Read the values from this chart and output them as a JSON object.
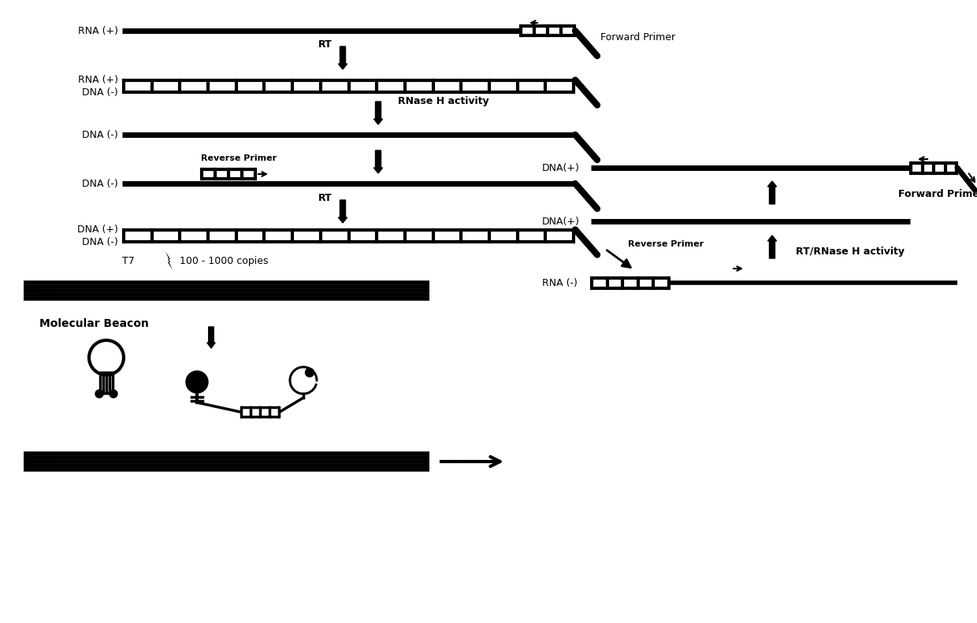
{
  "bg_color": "#ffffff",
  "fig_width": 12.4,
  "fig_height": 7.91,
  "labels": {
    "RNA_plus": "RNA (+)",
    "rna_plus": "RNA (+)",
    "dna_minus": "DNA (-)",
    "DNA_minus": "DNA(-)",
    "DNA_plus": "DNA(+)",
    "DNA_plus_1": "DNA (+)",
    "DNA_plus_2": "DNA (-)",
    "T7": "T7",
    "copies": "100 - 1000 copies",
    "RNA_minus": "RNA(-)",
    "RNA_minus_r": "RNA (-)",
    "mol_beacon": "Molecular Beacon",
    "DNA_plus_r1": "DNA(+)",
    "DNA_plus_r2": "DNA(+)",
    "RT": "RT",
    "RNase1": "RNase H activity",
    "RNase2": "RT/RNase H activity",
    "FP1": "Forward Primer",
    "FP2": "Forward Primer",
    "RP1": "Reverse Primer",
    "RP2": "Reverse Primer"
  }
}
